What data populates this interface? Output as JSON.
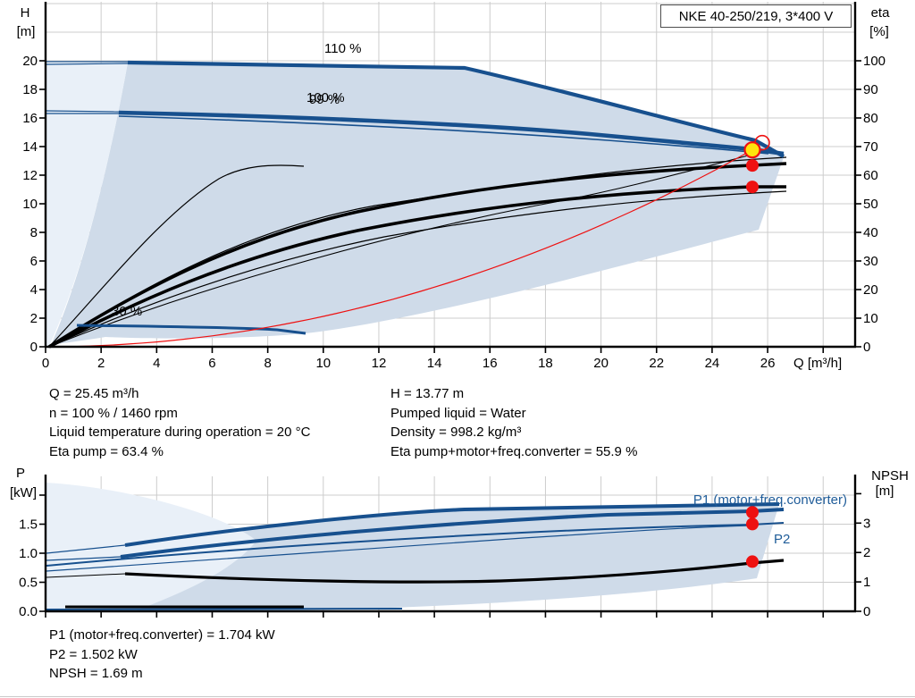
{
  "title_box": "NKE 40-250/219, 3*400 V",
  "axes": {
    "top": {
      "left_title": "H",
      "left_unit": "[m]",
      "right_title": "eta",
      "right_unit": "[%]",
      "x_title": "Q [m³/h]"
    },
    "bottom": {
      "left_title": "P",
      "left_unit": "[kW]",
      "right_title": "NPSH",
      "right_unit": "[m]"
    }
  },
  "labels": {
    "speed_110": "110 %",
    "speed_100": "100 %",
    "speed_99": "99 %",
    "speed_30": "30 %",
    "p1": "P1 (motor+freq.converter)",
    "p2": "P2"
  },
  "info_top_left": [
    "Q = 25.45 m³/h",
    "n = 100 % / 1460 rpm",
    "Liquid temperature during operation = 20 °C",
    "Eta pump = 63.4 %"
  ],
  "info_top_right": [
    "H = 13.77 m",
    "Pumped liquid = Water",
    "Density = 998.2 kg/m³",
    "Eta pump+motor+freq.converter = 55.9 %"
  ],
  "info_bottom": [
    "P1 (motor+freq.converter) = 1.704 kW",
    "P2 = 1.502 kW",
    "NPSH = 1.69 m"
  ],
  "duty": {
    "q": 25.45,
    "h": 13.77,
    "eta_pump": 63.4,
    "eta_total": 55.9,
    "p1_kw": 1.704,
    "p2_kw": 1.502,
    "npsh_m": 1.69
  },
  "colors": {
    "curve_blue": "#17508e",
    "fill_main": "#cfdbe9",
    "fill_pale": "#e9f0f8",
    "red": "#ee1111",
    "yellow": "#ffe40d",
    "label_blue": "#1f5c99",
    "grid": "#cccccc"
  },
  "chart_data": [
    {
      "type": "line",
      "title": "NKE 40-250/219, 3*400 V",
      "xlabel": "Q [m³/h]",
      "ylabel_left": "H [m]",
      "ylabel_right": "eta [%]",
      "xlim": [
        0,
        29.2
      ],
      "ylim_left": [
        0,
        24.1
      ],
      "ylim_right": [
        0,
        120.6
      ],
      "grid": true,
      "legend": "inline curve labels",
      "xticks": [
        0,
        2,
        4,
        6,
        8,
        10,
        12,
        14,
        16,
        18,
        20,
        22,
        24,
        26
      ],
      "grid_x": [
        2,
        4,
        6,
        8,
        10,
        12,
        14,
        16,
        18,
        20,
        22,
        24,
        26,
        28
      ],
      "yticks_left": [
        0,
        2,
        4,
        6,
        8,
        10,
        12,
        14,
        16,
        18,
        20
      ],
      "grid_y_left": [
        2,
        4,
        6,
        8,
        10,
        12,
        14,
        16,
        18,
        20,
        22,
        24
      ],
      "yticks_right": [
        0,
        10,
        20,
        30,
        40,
        50,
        60,
        70,
        80,
        90,
        100
      ],
      "curve_labels": [
        "110 %",
        "100 %",
        "99 %",
        "30 %"
      ],
      "series": [
        {
          "name": "speed 110 % (max speed boundary)",
          "axis": "left",
          "color": "#17508e",
          "points": [
            [
              3,
              19.9
            ],
            [
              10,
              19.7
            ],
            [
              15,
              19.5
            ],
            [
              20,
              17.2
            ],
            [
              23,
              15.7
            ],
            [
              25.5,
              14.4
            ],
            [
              26.6,
              13.2
            ]
          ]
        },
        {
          "name": "speed 100 %",
          "axis": "left",
          "color": "#17508e",
          "points": [
            [
              2.6,
              16.4
            ],
            [
              8,
              16.2
            ],
            [
              14,
              15.8
            ],
            [
              20,
              14.9
            ],
            [
              25.45,
              13.77
            ],
            [
              26.6,
              13.5
            ]
          ]
        },
        {
          "name": "speed 99 %",
          "axis": "left",
          "color": "#17508e",
          "points": [
            [
              2.6,
              16.1
            ],
            [
              10,
              15.7
            ],
            [
              18,
              14.8
            ],
            [
              26,
              13.5
            ]
          ]
        },
        {
          "name": "speed 30 %",
          "axis": "left",
          "color": "#17508e",
          "points": [
            [
              1.1,
              1.5
            ],
            [
              5,
              1.4
            ],
            [
              9.4,
              0.95
            ]
          ]
        },
        {
          "name": "eta pump",
          "axis": "right",
          "color": "#000000",
          "points": [
            [
              0,
              0
            ],
            [
              4,
              21
            ],
            [
              8,
              36
            ],
            [
              12,
              46
            ],
            [
              16,
              53
            ],
            [
              20,
              58
            ],
            [
              25.45,
              63.4
            ],
            [
              26.6,
              64
            ]
          ]
        },
        {
          "name": "eta pump+motor+freq.converter",
          "axis": "right",
          "color": "#000000",
          "points": [
            [
              0,
              0
            ],
            [
              4,
              17
            ],
            [
              8,
              30
            ],
            [
              12,
              40
            ],
            [
              16,
              47
            ],
            [
              20,
              52
            ],
            [
              25.45,
              55.9
            ],
            [
              26.6,
              56.2
            ]
          ]
        },
        {
          "name": "control curve (affinity parabola through duty point)",
          "axis": "left",
          "color": "#ee1111",
          "points": [
            [
              0,
              0
            ],
            [
              25.45,
              13.77
            ]
          ]
        }
      ],
      "operating_points": [
        {
          "q": 25.45,
          "h": 13.77,
          "marker": "duty-yellow"
        },
        {
          "q": 25.45,
          "eta": 63.4,
          "marker": "red"
        },
        {
          "q": 25.45,
          "eta": 55.9,
          "marker": "red"
        }
      ]
    },
    {
      "type": "line",
      "title": "",
      "xlabel": "",
      "ylabel_left": "P [kW]",
      "ylabel_right": "NPSH [m]",
      "xlim": [
        0,
        29.2
      ],
      "ylim_left": [
        0,
        2.35
      ],
      "ylim_right": [
        0,
        4.65
      ],
      "grid": true,
      "grid_x": [
        2,
        4,
        6,
        8,
        10,
        12,
        14,
        16,
        18,
        20,
        22,
        24,
        26,
        28
      ],
      "yticks_left": [
        "0.0",
        "0.5",
        "1.0",
        "1.5"
      ],
      "yticks_right": [
        0,
        1,
        2,
        3
      ],
      "curve_labels": [
        "P1 (motor+freq.converter)",
        "P2"
      ],
      "series": [
        {
          "name": "P at 110 % (max boundary)",
          "axis": "left",
          "color": "#17508e",
          "points": [
            [
              2.9,
              1.15
            ],
            [
              10,
              1.5
            ],
            [
              15,
              1.74
            ],
            [
              26.4,
              1.84
            ]
          ]
        },
        {
          "name": "P1 (motor+freq.converter)",
          "axis": "left",
          "color": "#17508e",
          "points": [
            [
              2.7,
              0.94
            ],
            [
              10,
              1.25
            ],
            [
              18,
              1.5
            ],
            [
              25.45,
              1.704
            ],
            [
              26.6,
              1.75
            ]
          ]
        },
        {
          "name": "P2",
          "axis": "left",
          "color": "#17508e",
          "points": [
            [
              0,
              0.78
            ],
            [
              10,
              1.15
            ],
            [
              18,
              1.38
            ],
            [
              25.45,
              1.502
            ],
            [
              26.6,
              1.52
            ]
          ]
        },
        {
          "name": "NPSH",
          "axis": "right",
          "color": "#000000",
          "points": [
            [
              2.9,
              1.28
            ],
            [
              8,
              1.05
            ],
            [
              13,
              0.97
            ],
            [
              18,
              1.1
            ],
            [
              25.45,
              1.69
            ],
            [
              26.6,
              1.74
            ]
          ]
        },
        {
          "name": "P at 30 %",
          "axis": "left",
          "color": "#000000",
          "points": [
            [
              0.7,
              0.08
            ],
            [
              9.3,
              0.08
            ]
          ]
        }
      ],
      "operating_points": [
        {
          "q": 25.45,
          "p": 1.704,
          "marker": "red"
        },
        {
          "q": 25.45,
          "p": 1.502,
          "marker": "red"
        },
        {
          "q": 25.45,
          "npsh": 1.69,
          "marker": "red"
        }
      ]
    }
  ]
}
